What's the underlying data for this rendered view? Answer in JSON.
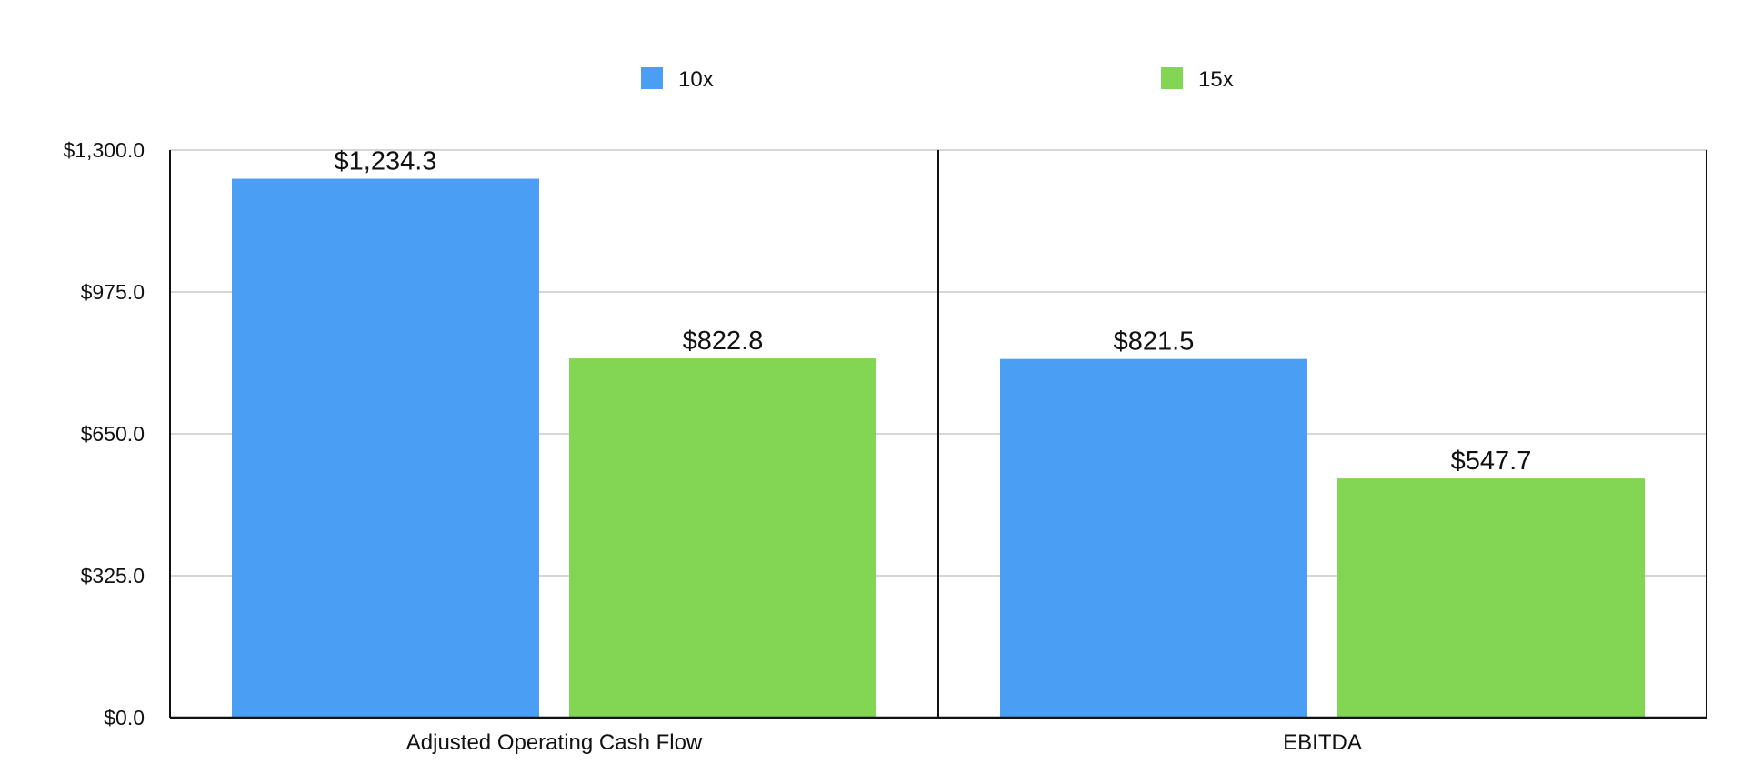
{
  "chart_data": {
    "type": "bar",
    "categories": [
      "Adjusted Operating Cash Flow",
      "EBITDA"
    ],
    "series": [
      {
        "name": "10x",
        "color": "#4a9ff5",
        "values": [
          1234.3,
          821.5
        ],
        "labels": [
          "$1,234.3",
          "$821.5"
        ]
      },
      {
        "name": "15x",
        "color": "#83d653",
        "values": [
          822.8,
          547.7
        ],
        "labels": [
          "$822.8",
          "$547.7"
        ]
      }
    ],
    "ylim": [
      0,
      1300
    ],
    "yticks": [
      0,
      325,
      650,
      975,
      1300
    ],
    "ytick_labels": [
      "$0.0",
      "$325.0",
      "$650.0",
      "$975.0",
      "$1,300.0"
    ],
    "grid": true,
    "legend_position": "top-center",
    "title": "",
    "xlabel": "",
    "ylabel": ""
  }
}
